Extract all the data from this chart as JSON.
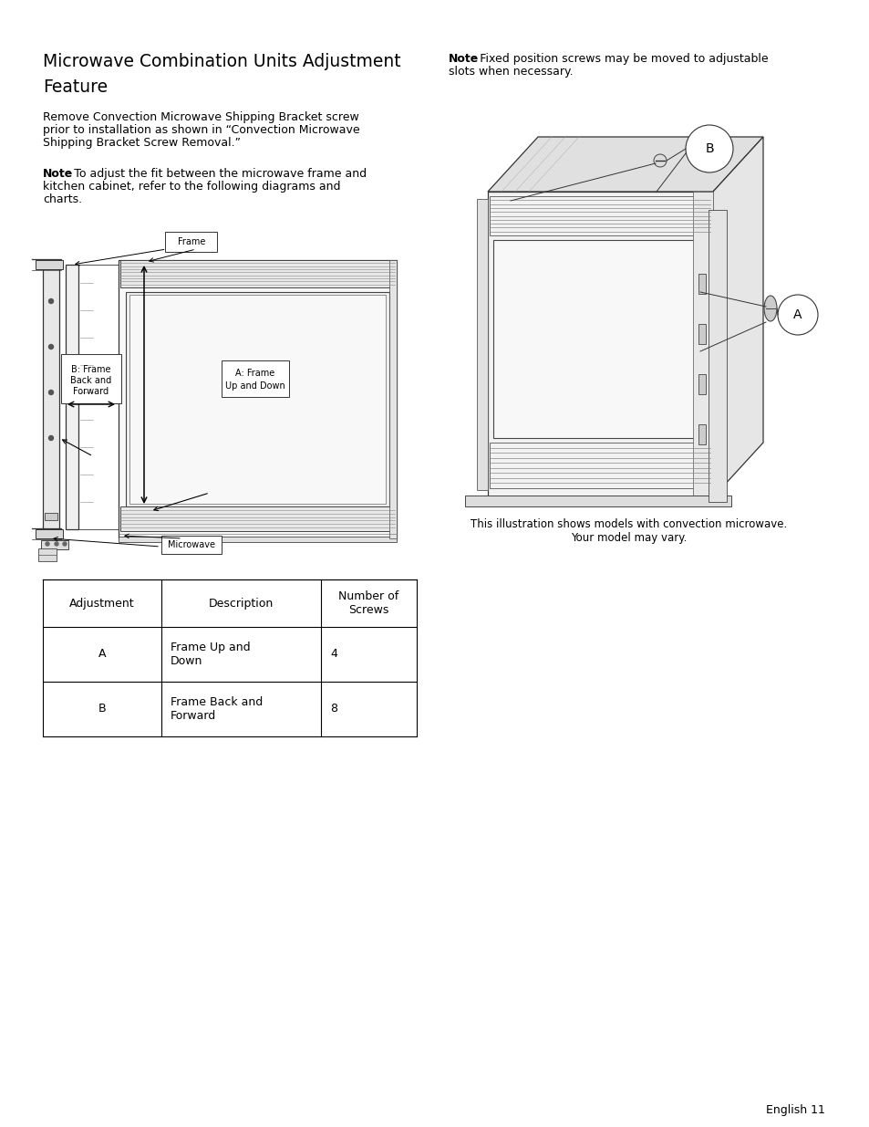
{
  "bg_color": "#ffffff",
  "text_color": "#000000",
  "page_footer": "English 11",
  "title_line1": "Microwave Combination Units Adjustment",
  "title_line2": "Feature",
  "para1_line1": "Remove Convection Microwave Shipping Bracket screw",
  "para1_line2": "prior to installation as shown in “Convection Microwave",
  "para1_line3": "Shipping Bracket Screw Removal.”",
  "note2_line1": ": Fixed position screws may be moved to adjustable",
  "note2_line2": "slots when necessary.",
  "note1_line1": ": To adjust the fit between the microwave frame and",
  "note1_line2": "kitchen cabinet, refer to the following diagrams and",
  "note1_line3": "charts.",
  "caption_line1": "This illustration shows models with convection microwave.",
  "caption_line2": "Your model may vary.",
  "table_headers": [
    "Adjustment",
    "Description",
    "Number of\nScrews"
  ],
  "table_rows": [
    [
      "A",
      "Frame Up and\nDown",
      "4"
    ],
    [
      "B",
      "Frame Back and\nForward",
      "8"
    ]
  ]
}
